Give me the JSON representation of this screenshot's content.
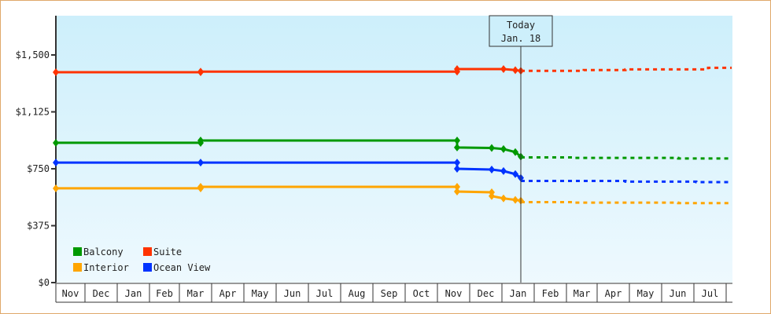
{
  "chart_data": {
    "type": "line",
    "title": "",
    "xlabel": "",
    "ylabel": "",
    "ylim": [
      0,
      1750
    ],
    "yticks": [
      "$0",
      "$375",
      "$750",
      "$1,125",
      "$1,500"
    ],
    "ytick_values": [
      0,
      375,
      750,
      1125,
      1500
    ],
    "x_categories": [
      "Nov",
      "Dec",
      "Jan",
      "Feb",
      "Mar",
      "Apr",
      "May",
      "Jun",
      "Jul",
      "Aug",
      "Sep",
      "Oct",
      "Nov",
      "Dec",
      "Jan",
      "Feb",
      "Mar",
      "Apr",
      "May",
      "Jun",
      "Jul"
    ],
    "annotation": {
      "label_line1": "Today",
      "label_line2": "Jan. 18"
    },
    "legend": [
      {
        "name": "Balcony",
        "color": "#009900"
      },
      {
        "name": "Suite",
        "color": "#ff3300"
      },
      {
        "name": "Interior",
        "color": "#ffa500"
      },
      {
        "name": "Ocean View",
        "color": "#0033ff"
      }
    ],
    "series": [
      {
        "name": "Suite",
        "color": "#ff3300",
        "historical": [
          [
            "Nov",
            1386
          ],
          [
            "Mar",
            1386
          ],
          [
            "Mar",
            1390
          ],
          [
            "Nov",
            1390
          ],
          [
            "Nov",
            1407
          ],
          [
            "Jan",
            1407
          ],
          [
            "Jan",
            1400
          ],
          [
            "Jan.18",
            1395
          ]
        ],
        "forecast": [
          [
            "Jan.18",
            1395
          ],
          [
            "Mar",
            1400
          ],
          [
            "May",
            1407
          ],
          [
            "Jul",
            1420
          ]
        ]
      },
      {
        "name": "Balcony",
        "color": "#009900",
        "historical": [
          [
            "Nov",
            921
          ],
          [
            "Mar",
            921
          ],
          [
            "Mar",
            936
          ],
          [
            "Nov",
            936
          ],
          [
            "Nov",
            890
          ],
          [
            "Dec",
            887
          ],
          [
            "Jan",
            870
          ],
          [
            "Jan",
            845
          ],
          [
            "Jan.18",
            830
          ]
        ],
        "forecast": [
          [
            "Jan.18",
            830
          ],
          [
            "Mar",
            825
          ],
          [
            "Jul",
            820
          ]
        ]
      },
      {
        "name": "Ocean View",
        "color": "#0033ff",
        "historical": [
          [
            "Nov",
            791
          ],
          [
            "Mar",
            791
          ],
          [
            "Nov",
            791
          ],
          [
            "Nov",
            750
          ],
          [
            "Dec",
            745
          ],
          [
            "Jan",
            735
          ],
          [
            "Jan",
            715
          ],
          [
            "Jan.18",
            690
          ]
        ],
        "forecast": [
          [
            "Jan.18",
            690
          ],
          [
            "Apr",
            685
          ],
          [
            "Jul",
            675
          ]
        ]
      },
      {
        "name": "Interior",
        "color": "#ffa500",
        "historical": [
          [
            "Nov",
            621
          ],
          [
            "Mar",
            621
          ],
          [
            "Mar",
            631
          ],
          [
            "Nov",
            631
          ],
          [
            "Nov",
            600
          ],
          [
            "Dec",
            595
          ],
          [
            "Dec",
            570
          ],
          [
            "Jan",
            555
          ],
          [
            "Jan.18",
            540
          ]
        ],
        "forecast": [
          [
            "Jan.18",
            540
          ],
          [
            "Mar",
            535
          ],
          [
            "Jun",
            530
          ],
          [
            "Jul",
            530
          ]
        ]
      }
    ]
  }
}
